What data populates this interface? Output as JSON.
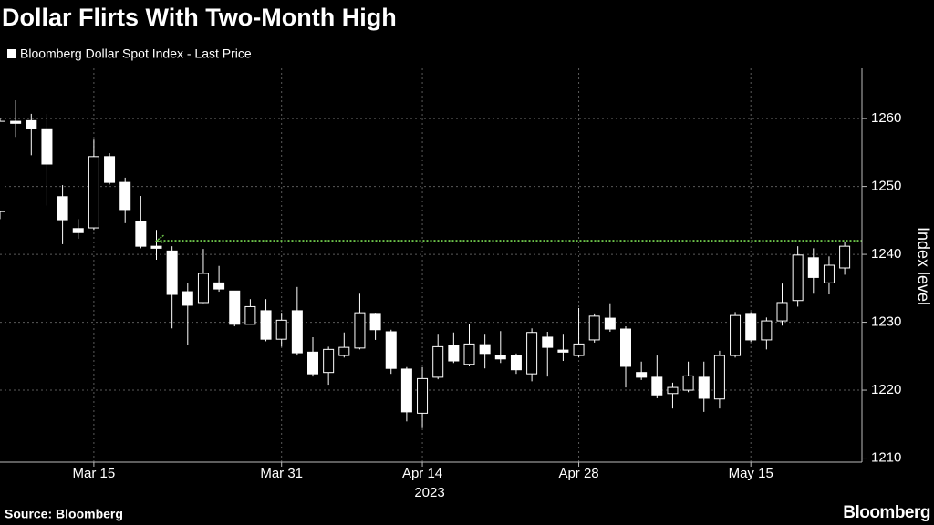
{
  "chart_data": {
    "type": "candlestick",
    "title": "Dollar Flirts With Two-Month High",
    "categories": [
      null,
      null,
      null,
      null,
      null,
      null,
      "Mar 15",
      null,
      null,
      null,
      null,
      null,
      null,
      null,
      null,
      null,
      null,
      null,
      "Mar 31",
      null,
      null,
      null,
      null,
      null,
      null,
      null,
      null,
      "Apr 14",
      null,
      null,
      null,
      null,
      null,
      null,
      null,
      null,
      null,
      "Apr 28",
      null,
      null,
      null,
      null,
      null,
      null,
      null,
      null,
      null,
      null,
      "May 15",
      null,
      null,
      null,
      null,
      null,
      null
    ],
    "x_sublabel": "2023",
    "series": [
      {
        "name": "Bloomberg Dollar Spot Index - Last Price",
        "color": "#ffffff",
        "open": [
          1246.3,
          1259.6,
          1259.7,
          1258.5,
          1248.5,
          1243.8,
          1243.9,
          1254.4,
          1250.6,
          1244.8,
          1241.2,
          1240.5,
          1234.5,
          1232.9,
          1235.8,
          1234.6,
          1229.7,
          1231.7,
          1227.5,
          1231.7,
          1225.6,
          1222.6,
          1225.1,
          1226.2,
          1231.3,
          1228.6,
          1223.1,
          1216.6,
          1221.9,
          1226.6,
          1223.8,
          1226.7,
          1225.1,
          1225.1,
          1222.4,
          1227.8,
          1225.9,
          1225.1,
          1227.4,
          1230.6,
          1229.0,
          1222.6,
          1221.9,
          1219.5,
          1220.0,
          1221.9,
          1218.7,
          1225.1,
          1231.3,
          1227.4,
          1230.2,
          1233.2,
          1239.5,
          1235.8,
          1238.0
        ],
        "high": [
          1260.0,
          1262.7,
          1260.7,
          1260.7,
          1250.2,
          1245.2,
          1256.9,
          1254.9,
          1251.3,
          1248.6,
          1243.6,
          1241.2,
          1235.8,
          1240.8,
          1238.3,
          1234.6,
          1233.4,
          1233.4,
          1231.4,
          1235.2,
          1227.8,
          1226.4,
          1228.5,
          1234.2,
          1231.4,
          1228.9,
          1223.4,
          1223.4,
          1228.3,
          1228.5,
          1229.7,
          1228.3,
          1228.7,
          1225.4,
          1229.1,
          1228.6,
          1228.3,
          1232.1,
          1231.3,
          1232.8,
          1229.4,
          1224.2,
          1225.1,
          1221.1,
          1224.2,
          1224.2,
          1225.8,
          1231.5,
          1231.5,
          1230.7,
          1235.7,
          1241.2,
          1240.9,
          1239.7,
          1241.9
        ],
        "low": [
          1245.2,
          1257.3,
          1254.6,
          1247.2,
          1241.5,
          1242.3,
          1243.6,
          1250.3,
          1244.6,
          1240.9,
          1239.2,
          1229.1,
          1226.7,
          1232.8,
          1234.5,
          1229.4,
          1229.7,
          1227.2,
          1226.4,
          1225.1,
          1222.0,
          1220.8,
          1224.8,
          1226.0,
          1227.4,
          1222.4,
          1215.4,
          1214.4,
          1221.6,
          1224.0,
          1223.5,
          1223.2,
          1224.0,
          1222.4,
          1221.3,
          1222.0,
          1224.3,
          1224.8,
          1227.0,
          1228.6,
          1220.4,
          1221.5,
          1218.8,
          1217.3,
          1219.7,
          1216.8,
          1217.3,
          1224.8,
          1227.1,
          1226.0,
          1229.5,
          1232.3,
          1234.2,
          1234.1,
          1237.0
        ],
        "close": [
          1259.6,
          1259.3,
          1258.5,
          1253.3,
          1245.1,
          1243.2,
          1254.4,
          1250.6,
          1246.6,
          1241.2,
          1240.9,
          1234.1,
          1232.5,
          1237.2,
          1234.9,
          1229.7,
          1232.3,
          1227.5,
          1230.3,
          1225.5,
          1222.4,
          1226.0,
          1226.3,
          1231.4,
          1228.9,
          1223.2,
          1216.8,
          1221.7,
          1226.4,
          1224.3,
          1226.8,
          1225.4,
          1224.6,
          1223.0,
          1228.5,
          1226.3,
          1225.6,
          1226.8,
          1230.9,
          1229.0,
          1223.5,
          1221.9,
          1219.3,
          1220.4,
          1222.1,
          1218.8,
          1225.1,
          1231.0,
          1227.4,
          1230.2,
          1232.9,
          1239.9,
          1236.6,
          1238.4,
          1241.2
        ]
      }
    ],
    "reference_line": {
      "value": 1242,
      "color": "#6cc24a"
    },
    "ylim": [
      1209.4,
      1267.4
    ],
    "yticks": [
      1210,
      1220,
      1230,
      1240,
      1250,
      1260
    ],
    "y_label": "Index level",
    "y_axis_side": "right",
    "grid": true,
    "source": "Source: Bloomberg",
    "brand": "Bloomberg"
  }
}
